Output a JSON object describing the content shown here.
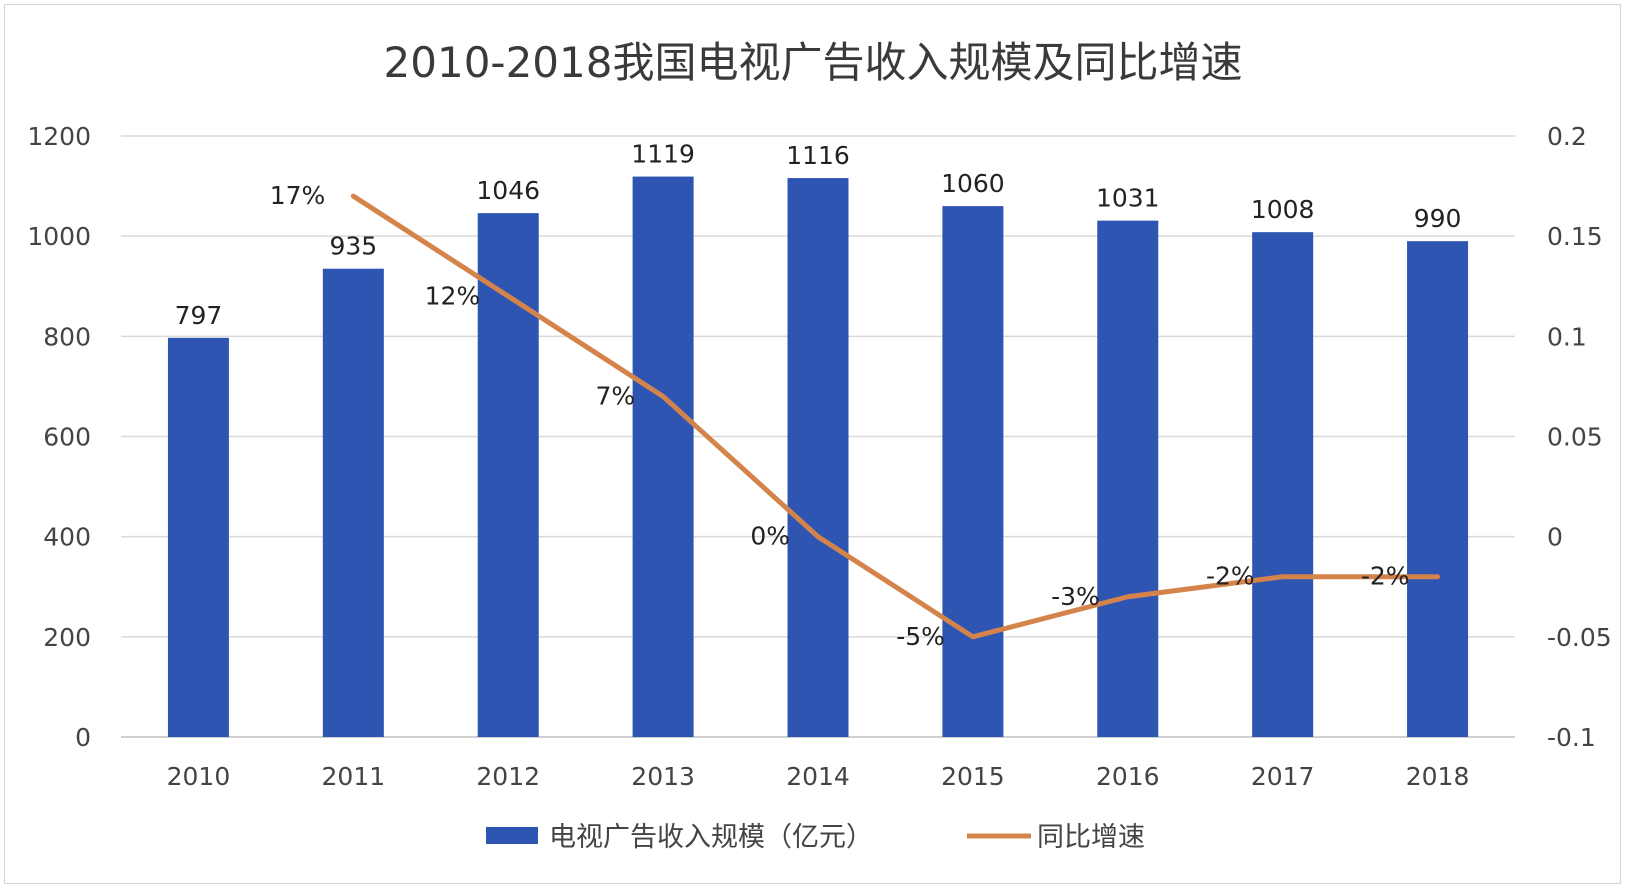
{
  "chart_data": {
    "type": "bar",
    "title": "2010-2018我国电视广告收入规模及同比增速",
    "categories": [
      "2010",
      "2011",
      "2012",
      "2013",
      "2014",
      "2015",
      "2016",
      "2017",
      "2018"
    ],
    "series": [
      {
        "name": "电视广告收入规模（亿元）",
        "type": "bar",
        "axis": "left",
        "color": "#2F55B3",
        "values": [
          797,
          935,
          1046,
          1119,
          1116,
          1060,
          1031,
          1008,
          990
        ],
        "labels": [
          "797",
          "935",
          "1046",
          "1119",
          "1116",
          "1060",
          "1031",
          "1008",
          "990"
        ]
      },
      {
        "name": "同比增速",
        "type": "line",
        "axis": "right",
        "color": "#D4844A",
        "values": [
          null,
          0.17,
          0.12,
          0.07,
          0.0,
          -0.05,
          -0.03,
          -0.02,
          -0.02
        ],
        "labels": [
          "",
          "17%",
          "12%",
          "7%",
          "0%",
          "-5%",
          "-3%",
          "-2%",
          "-2%"
        ]
      }
    ],
    "y_left": {
      "ylim": [
        0,
        1200
      ],
      "ticks": [
        "0",
        "200",
        "400",
        "600",
        "800",
        "1000",
        "1200"
      ]
    },
    "y_right": {
      "ylim": [
        -0.1,
        0.2
      ],
      "ticks": [
        "-0.1",
        "-0.05",
        "0",
        "0.05",
        "0.1",
        "0.15",
        "0.2"
      ]
    },
    "grid": true,
    "legend_position": "bottom"
  }
}
